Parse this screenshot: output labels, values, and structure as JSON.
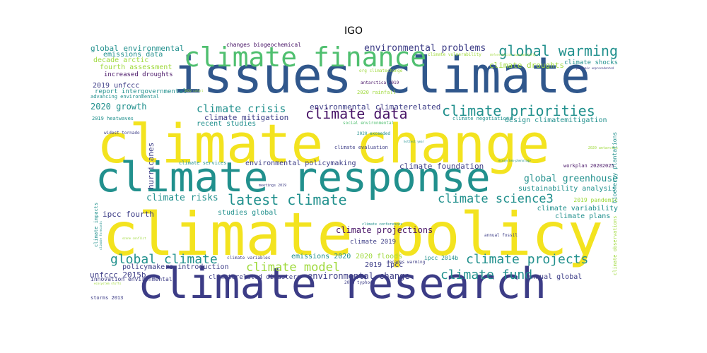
{
  "title": "IGO",
  "colors": {
    "yellow": "#f3e31f",
    "blue": "#30578c",
    "navy": "#3c3c86",
    "teal": "#21908d",
    "green": "#4fbf6f",
    "lime": "#9ed93a",
    "purple": "#481467"
  },
  "words": [
    {
      "text": "climate change",
      "color": "yellow"
    },
    {
      "text": "issues climate",
      "color": "blue"
    },
    {
      "text": "climate response",
      "color": "teal"
    },
    {
      "text": "climate policy",
      "color": "yellow"
    },
    {
      "text": "climate research",
      "color": "navy"
    },
    {
      "text": "climate finance",
      "color": "green"
    },
    {
      "text": "global warming",
      "color": "teal"
    },
    {
      "text": "climate priorities",
      "color": "teal"
    },
    {
      "text": "climate data",
      "color": "purple"
    },
    {
      "text": "latest climate",
      "color": "teal"
    },
    {
      "text": "climate crisis",
      "color": "teal"
    },
    {
      "text": "global climate",
      "color": "teal"
    },
    {
      "text": "climate model",
      "color": "lime"
    },
    {
      "text": "climate projects",
      "color": "teal"
    },
    {
      "text": "climate fund",
      "color": "teal"
    },
    {
      "text": "climate science3",
      "color": "teal"
    },
    {
      "text": "environmental problems",
      "color": "navy"
    },
    {
      "text": "global environmental",
      "color": "teal"
    },
    {
      "text": "environmental change",
      "color": "navy"
    },
    {
      "text": "climate projections",
      "color": "purple"
    },
    {
      "text": "global greenhouse",
      "color": "teal"
    },
    {
      "text": "climate risks",
      "color": "teal"
    },
    {
      "text": "2020 growth",
      "color": "teal"
    },
    {
      "text": "environmental climaterelated",
      "color": "navy"
    },
    {
      "text": "climate droughts",
      "color": "lime"
    },
    {
      "text": "emissions data",
      "color": "teal"
    },
    {
      "text": "decade arctic",
      "color": "lime"
    },
    {
      "text": "fourth assessment",
      "color": "lime"
    },
    {
      "text": "increased droughts",
      "color": "purple"
    },
    {
      "text": "2019 unfccc",
      "color": "navy"
    },
    {
      "text": "report intergovernmental",
      "color": "teal"
    },
    {
      "text": "advancing environmental",
      "color": "teal"
    },
    {
      "text": "climate mitigation",
      "color": "navy"
    },
    {
      "text": "recent studies",
      "color": "teal"
    },
    {
      "text": "environmental policymaking",
      "color": "navy"
    },
    {
      "text": "climate foundation",
      "color": "navy"
    },
    {
      "text": "sustainability analysis",
      "color": "teal"
    },
    {
      "text": "design climatemitigation",
      "color": "teal"
    },
    {
      "text": "climate variability",
      "color": "teal"
    },
    {
      "text": "climate plans",
      "color": "teal"
    },
    {
      "text": "2019 pandemic",
      "color": "lime"
    },
    {
      "text": "ipcc fourth",
      "color": "navy"
    },
    {
      "text": "studies global",
      "color": "teal"
    },
    {
      "text": "unfccc 2015b",
      "color": "navy"
    },
    {
      "text": "policymakers introduction",
      "color": "navy"
    },
    {
      "text": "innovation environmental",
      "color": "navy"
    },
    {
      "text": "2019 ipcc",
      "color": "navy"
    },
    {
      "text": "emissions 2020",
      "color": "teal"
    },
    {
      "text": "2020 floods",
      "color": "lime"
    },
    {
      "text": "climate 2019",
      "color": "navy"
    },
    {
      "text": "annual global",
      "color": "navy"
    },
    {
      "text": "climaterelated disasters",
      "color": "navy"
    },
    {
      "text": "storms 2013",
      "color": "navy"
    },
    {
      "text": "2013 typhoon",
      "color": "navy"
    },
    {
      "text": "ipcc 2014b",
      "color": "teal"
    },
    {
      "text": "hurricanes",
      "color": "navy"
    },
    {
      "text": "climate shocks",
      "color": "teal"
    },
    {
      "text": "changes biogeochemical",
      "color": "purple"
    },
    {
      "text": "climate vulnerability",
      "color": "lime"
    },
    {
      "text": "climate negotiations",
      "color": "teal"
    },
    {
      "text": "social environmental",
      "color": "green"
    },
    {
      "text": "2020 exceeded",
      "color": "teal"
    },
    {
      "text": "climate evaluation",
      "color": "navy"
    },
    {
      "text": "widest tornado",
      "color": "navy"
    },
    {
      "text": "2019 heatwaves",
      "color": "teal"
    },
    {
      "text": "climate services",
      "color": "teal"
    },
    {
      "text": "climate variables",
      "color": "navy"
    },
    {
      "text": "climate conferences",
      "color": "teal"
    },
    {
      "text": "decades warming",
      "color": "navy"
    },
    {
      "text": "annual fossil",
      "color": "navy"
    },
    {
      "text": "workplan 20202025",
      "color": "purple"
    },
    {
      "text": "antarctica 2019",
      "color": "purple"
    },
    {
      "text": "2020 rainfall",
      "color": "lime"
    },
    {
      "text": "org climatechange",
      "color": "lime"
    },
    {
      "text": "meetings 2019",
      "color": "navy"
    },
    {
      "text": "2020 antarctic",
      "color": "lime"
    },
    {
      "text": "climate impacts",
      "color": "teal"
    },
    {
      "text": "bioenergy plantations",
      "color": "teal"
    },
    {
      "text": "climate observations",
      "color": "lime"
    },
    {
      "text": "2020 safari",
      "color": "lime"
    },
    {
      "text": "pandemic unprecedented",
      "color": "navy"
    },
    {
      "text": "deforestation substantially",
      "color": "lime"
    },
    {
      "text": "ecosystem-phenology",
      "color": "teal"
    },
    {
      "text": "hottest year",
      "color": "teal"
    },
    {
      "text": "ecosystem shifts",
      "color": "lime"
    },
    {
      "text": "ozone conflict",
      "color": "lime"
    },
    {
      "text": "climate forecasts",
      "color": "teal"
    }
  ]
}
